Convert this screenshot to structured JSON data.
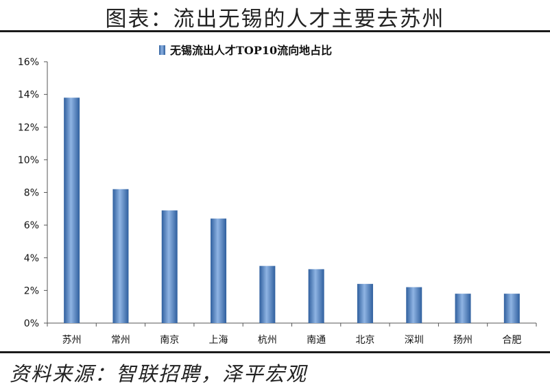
{
  "header": {
    "title": "图表：流出无锡的人才主要去苏州"
  },
  "footer": {
    "source": "资料来源：智联招聘，泽平宏观"
  },
  "chart_data": {
    "type": "bar",
    "legend": "无锡流出人才TOP10流向地占比",
    "legend_position": "top",
    "categories": [
      "苏州",
      "常州",
      "南京",
      "上海",
      "杭州",
      "南通",
      "北京",
      "深圳",
      "扬州",
      "合肥"
    ],
    "series": [
      {
        "name": "无锡流出人才TOP10流向地占比",
        "values": [
          13.8,
          8.2,
          6.9,
          6.4,
          3.5,
          3.3,
          2.4,
          2.2,
          1.8,
          1.8
        ]
      }
    ],
    "y_ticks": [
      "0%",
      "2%",
      "4%",
      "6%",
      "8%",
      "10%",
      "12%",
      "14%",
      "16%"
    ],
    "ylim": [
      0,
      16
    ],
    "y_unit": "%",
    "grid": false,
    "bar_color": "#4a7ec2"
  }
}
